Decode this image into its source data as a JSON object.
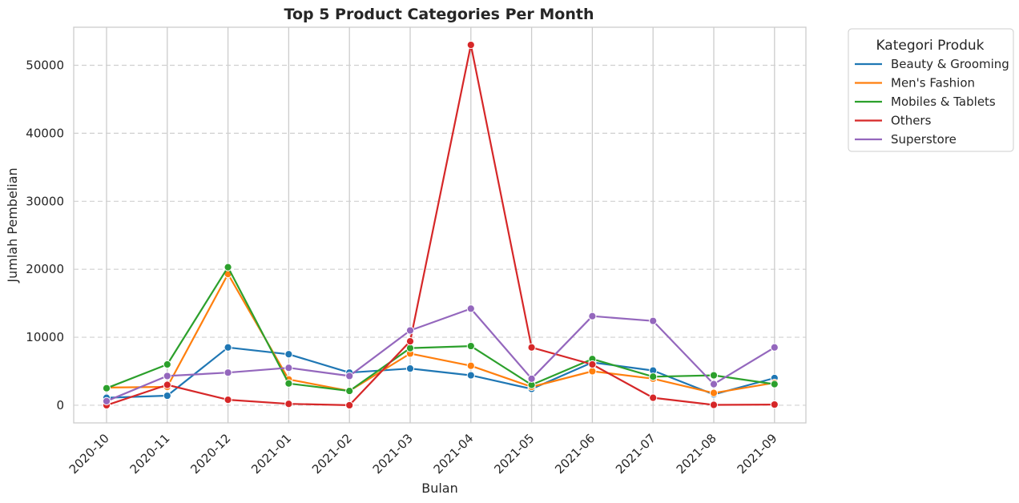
{
  "chart_data": {
    "type": "line",
    "title": "Top 5 Product Categories Per Month",
    "xlabel": "Bulan",
    "ylabel": "Jumlah Pembelian",
    "categories": [
      "2020-10",
      "2020-11",
      "2020-12",
      "2021-01",
      "2021-02",
      "2021-03",
      "2021-04",
      "2021-05",
      "2021-06",
      "2021-07",
      "2021-08",
      "2021-09"
    ],
    "ylim": [
      -2600,
      55600
    ],
    "yticks": [
      0,
      10000,
      20000,
      30000,
      40000,
      50000
    ],
    "grid": {
      "x": true,
      "y": true,
      "y_style": "dashed"
    },
    "legend": {
      "title": "Kategori Produk",
      "placement": "outside-top-right"
    },
    "series": [
      {
        "name": "Beauty & Grooming",
        "color": "#1f77b4",
        "values": [
          1100,
          1400,
          8500,
          7500,
          4800,
          5400,
          4400,
          2400,
          6300,
          5100,
          1600,
          4000
        ]
      },
      {
        "name": "Men's Fashion",
        "color": "#ff7f0e",
        "values": [
          2600,
          2700,
          19300,
          3800,
          2100,
          7600,
          5800,
          2700,
          5000,
          3900,
          1800,
          3300
        ]
      },
      {
        "name": "Mobiles & Tablets",
        "color": "#2ca02c",
        "values": [
          2500,
          6000,
          20300,
          3200,
          2100,
          8400,
          8700,
          3000,
          6800,
          4200,
          4400,
          3100
        ]
      },
      {
        "name": "Others",
        "color": "#d62728",
        "values": [
          0,
          3000,
          800,
          200,
          0,
          9400,
          53000,
          8500,
          6000,
          1100,
          50,
          100
        ]
      },
      {
        "name": "Superstore",
        "color": "#9467bd",
        "values": [
          600,
          4300,
          4800,
          5500,
          4300,
          11000,
          14200,
          3900,
          13100,
          12400,
          3100,
          8500
        ]
      }
    ]
  }
}
